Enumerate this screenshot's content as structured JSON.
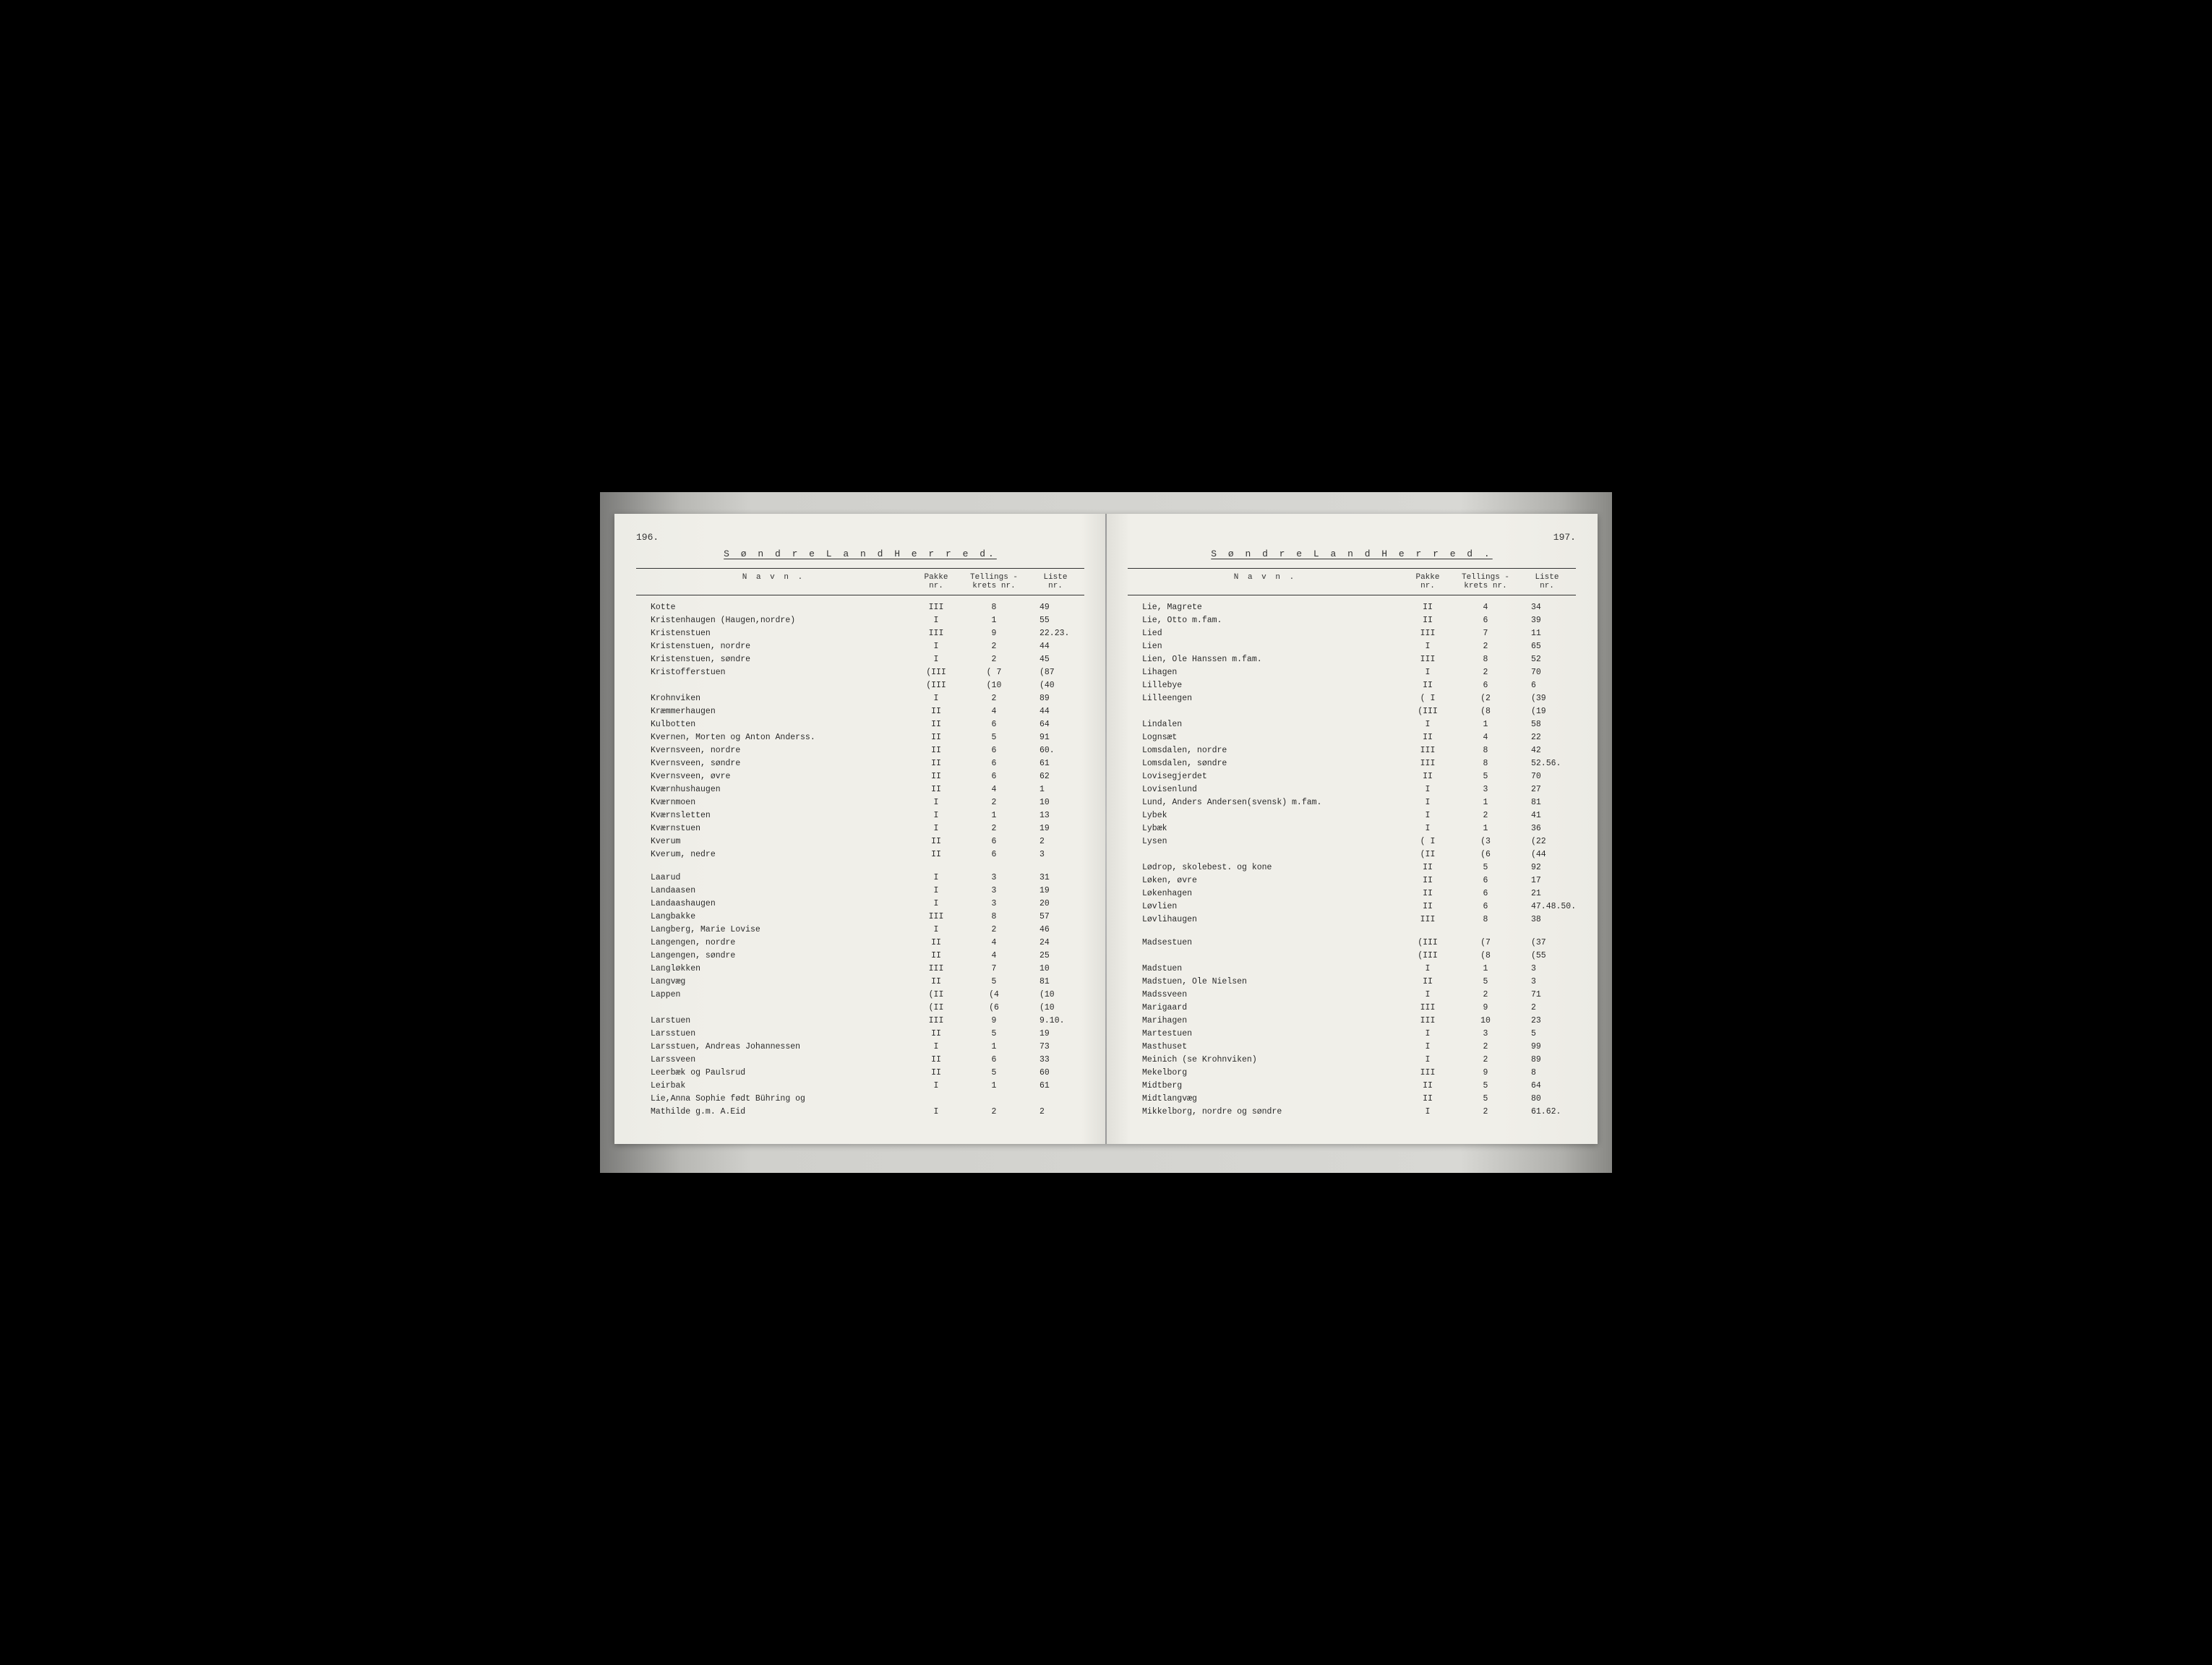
{
  "left_page": {
    "page_number": "196.",
    "title": "S ø n d r e  L a n d  H e r r e d.",
    "headers": {
      "name": "N a v n .",
      "pakke": "Pakke\nnr.",
      "tell": "Tellings -\nkrets nr.",
      "liste": "Liste\nnr."
    },
    "rows": [
      {
        "name": "Kotte",
        "pakke": "III",
        "tell": "8",
        "liste": "49"
      },
      {
        "name": "Kristenhaugen (Haugen,nordre)",
        "pakke": "I",
        "tell": "1",
        "liste": "55"
      },
      {
        "name": "Kristenstuen",
        "pakke": "III",
        "tell": "9",
        "liste": "22.23."
      },
      {
        "name": "Kristenstuen, nordre",
        "pakke": "I",
        "tell": "2",
        "liste": "44"
      },
      {
        "name": "Kristenstuen, søndre",
        "pakke": "I",
        "tell": "2",
        "liste": "45"
      },
      {
        "name": "Kristofferstuen",
        "pakke": "(III",
        "tell": "( 7",
        "liste": "(87"
      },
      {
        "name": "",
        "pakke": "(III",
        "tell": "(10",
        "liste": "(40"
      },
      {
        "name": "Krohnviken",
        "pakke": "I",
        "tell": "2",
        "liste": "89"
      },
      {
        "name": "Kræmmerhaugen",
        "pakke": "II",
        "tell": "4",
        "liste": "44"
      },
      {
        "name": "Kulbotten",
        "pakke": "II",
        "tell": "6",
        "liste": "64"
      },
      {
        "name": "Kvernen, Morten og Anton Anderss.",
        "pakke": "II",
        "tell": "5",
        "liste": "91"
      },
      {
        "name": "Kvernsveen, nordre",
        "pakke": "II",
        "tell": "6",
        "liste": "60."
      },
      {
        "name": "Kvernsveen, søndre",
        "pakke": "II",
        "tell": "6",
        "liste": "61"
      },
      {
        "name": "Kvernsveen, øvre",
        "pakke": "II",
        "tell": "6",
        "liste": "62"
      },
      {
        "name": "Kværnhushaugen",
        "pakke": "II",
        "tell": "4",
        "liste": "1"
      },
      {
        "name": "Kværnmoen",
        "pakke": "I",
        "tell": "2",
        "liste": "10"
      },
      {
        "name": "Kværnsletten",
        "pakke": "I",
        "tell": "1",
        "liste": "13"
      },
      {
        "name": "Kværnstuen",
        "pakke": "I",
        "tell": "2",
        "liste": "19"
      },
      {
        "name": "Kverum",
        "pakke": "II",
        "tell": "6",
        "liste": "2"
      },
      {
        "name": "Kverum, nedre",
        "pakke": "II",
        "tell": "6",
        "liste": "3"
      },
      {
        "spacer": true
      },
      {
        "name": "Laarud",
        "pakke": "I",
        "tell": "3",
        "liste": "31"
      },
      {
        "name": "Landaasen",
        "pakke": "I",
        "tell": "3",
        "liste": "19"
      },
      {
        "name": "Landaashaugen",
        "pakke": "I",
        "tell": "3",
        "liste": "20"
      },
      {
        "name": "Langbakke",
        "pakke": "III",
        "tell": "8",
        "liste": "57"
      },
      {
        "name": "Langberg, Marie Lovise",
        "pakke": "I",
        "tell": "2",
        "liste": "46"
      },
      {
        "name": "Langengen, nordre",
        "pakke": "II",
        "tell": "4",
        "liste": "24"
      },
      {
        "name": "Langengen, søndre",
        "pakke": "II",
        "tell": "4",
        "liste": "25"
      },
      {
        "name": "Langløkken",
        "pakke": "III",
        "tell": "7",
        "liste": "10"
      },
      {
        "name": "Langvæg",
        "pakke": "II",
        "tell": "5",
        "liste": "81"
      },
      {
        "name": "Lappen",
        "pakke": "(II",
        "tell": "(4",
        "liste": "(10"
      },
      {
        "name": "",
        "pakke": "(II",
        "tell": "(6",
        "liste": "(10"
      },
      {
        "name": "Larstuen",
        "pakke": "III",
        "tell": "9",
        "liste": "9.10."
      },
      {
        "name": "Larsstuen",
        "pakke": "II",
        "tell": "5",
        "liste": "19"
      },
      {
        "name": "Larsstuen, Andreas Johannessen",
        "pakke": "I",
        "tell": "1",
        "liste": "73"
      },
      {
        "name": "Larssveen",
        "pakke": "II",
        "tell": "6",
        "liste": "33"
      },
      {
        "name": "Leerbæk og Paulsrud",
        "pakke": "II",
        "tell": "5",
        "liste": "60"
      },
      {
        "name": "Leirbak",
        "pakke": "I",
        "tell": "1",
        "liste": "61"
      },
      {
        "name": "Lie,Anna Sophie født Bühring og",
        "pakke": "",
        "tell": "",
        "liste": ""
      },
      {
        "name": "  Mathilde g.m. A.Eid",
        "pakke": "I",
        "tell": "2",
        "liste": "2"
      }
    ]
  },
  "right_page": {
    "page_number": "197.",
    "title": "S ø n d r e  L a n d  H e r r e d .",
    "headers": {
      "name": "N a v n .",
      "pakke": "Pakke\nnr.",
      "tell": "Tellings -\nkrets nr.",
      "liste": "Liste\nnr."
    },
    "rows": [
      {
        "name": "Lie, Magrete",
        "pakke": "II",
        "tell": "4",
        "liste": "34"
      },
      {
        "name": "Lie, Otto m.fam.",
        "pakke": "II",
        "tell": "6",
        "liste": "39"
      },
      {
        "name": "Lied",
        "pakke": "III",
        "tell": "7",
        "liste": "11"
      },
      {
        "name": "Lien",
        "pakke": "I",
        "tell": "2",
        "liste": "65"
      },
      {
        "name": "Lien, Ole Hanssen m.fam.",
        "pakke": "III",
        "tell": "8",
        "liste": "52"
      },
      {
        "name": "Lihagen",
        "pakke": "I",
        "tell": "2",
        "liste": "70"
      },
      {
        "name": "Lillebye",
        "pakke": "II",
        "tell": "6",
        "liste": "6"
      },
      {
        "name": "Lilleengen",
        "pakke": "( I",
        "tell": "(2",
        "liste": "(39"
      },
      {
        "name": "",
        "pakke": "(III",
        "tell": "(8",
        "liste": "(19"
      },
      {
        "name": "Lindalen",
        "pakke": "I",
        "tell": "1",
        "liste": "58"
      },
      {
        "name": "Lognsæt",
        "pakke": "II",
        "tell": "4",
        "liste": "22"
      },
      {
        "name": "Lomsdalen, nordre",
        "pakke": "III",
        "tell": "8",
        "liste": "42"
      },
      {
        "name": "Lomsdalen, søndre",
        "pakke": "III",
        "tell": "8",
        "liste": "52.56."
      },
      {
        "name": "Lovisegjerdet",
        "pakke": "II",
        "tell": "5",
        "liste": "70"
      },
      {
        "name": "Lovisenlund",
        "pakke": "I",
        "tell": "3",
        "liste": "27"
      },
      {
        "name": "Lund, Anders Andersen(svensk) m.fam.",
        "pakke": "I",
        "tell": "1",
        "liste": "81"
      },
      {
        "name": "Lybek",
        "pakke": "I",
        "tell": "2",
        "liste": "41"
      },
      {
        "name": "Lybæk",
        "pakke": "I",
        "tell": "1",
        "liste": "36"
      },
      {
        "name": "Lysen",
        "pakke": "( I",
        "tell": "(3",
        "liste": "(22"
      },
      {
        "name": "",
        "pakke": "(II",
        "tell": "(6",
        "liste": "(44"
      },
      {
        "name": "Lødrop, skolebest. og kone",
        "pakke": "II",
        "tell": "5",
        "liste": "92"
      },
      {
        "name": "Løken, øvre",
        "pakke": "II",
        "tell": "6",
        "liste": "17"
      },
      {
        "name": "Løkenhagen",
        "pakke": "II",
        "tell": "6",
        "liste": "21"
      },
      {
        "name": "Løvlien",
        "pakke": "II",
        "tell": "6",
        "liste": "47.48.50."
      },
      {
        "name": "Løvlihaugen",
        "pakke": "III",
        "tell": "8",
        "liste": "38"
      },
      {
        "spacer": true
      },
      {
        "name": "Madsestuen",
        "pakke": "(III",
        "tell": "(7",
        "liste": "(37"
      },
      {
        "name": "",
        "pakke": "(III",
        "tell": "(8",
        "liste": "(55"
      },
      {
        "name": "Madstuen",
        "pakke": "I",
        "tell": "1",
        "liste": "3"
      },
      {
        "name": "Madstuen, Ole Nielsen",
        "pakke": "II",
        "tell": "5",
        "liste": "3"
      },
      {
        "name": "Madssveen",
        "pakke": "I",
        "tell": "2",
        "liste": "71"
      },
      {
        "name": "Marigaard",
        "pakke": "III",
        "tell": "9",
        "liste": "2"
      },
      {
        "name": "Marihagen",
        "pakke": "III",
        "tell": "10",
        "liste": "23"
      },
      {
        "name": "Martestuen",
        "pakke": "I",
        "tell": "3",
        "liste": "5"
      },
      {
        "name": "Masthuset",
        "pakke": "I",
        "tell": "2",
        "liste": "99"
      },
      {
        "name": "Meinich (se Krohnviken)",
        "pakke": "I",
        "tell": "2",
        "liste": "89"
      },
      {
        "name": "Mekelborg",
        "pakke": "III",
        "tell": "9",
        "liste": "8"
      },
      {
        "name": "Midtberg",
        "pakke": "II",
        "tell": "5",
        "liste": "64"
      },
      {
        "name": "Midtlangvæg",
        "pakke": "II",
        "tell": "5",
        "liste": "80"
      },
      {
        "name": "Mikkelborg, nordre og søndre",
        "pakke": "I",
        "tell": "2",
        "liste": "61.62."
      }
    ]
  }
}
